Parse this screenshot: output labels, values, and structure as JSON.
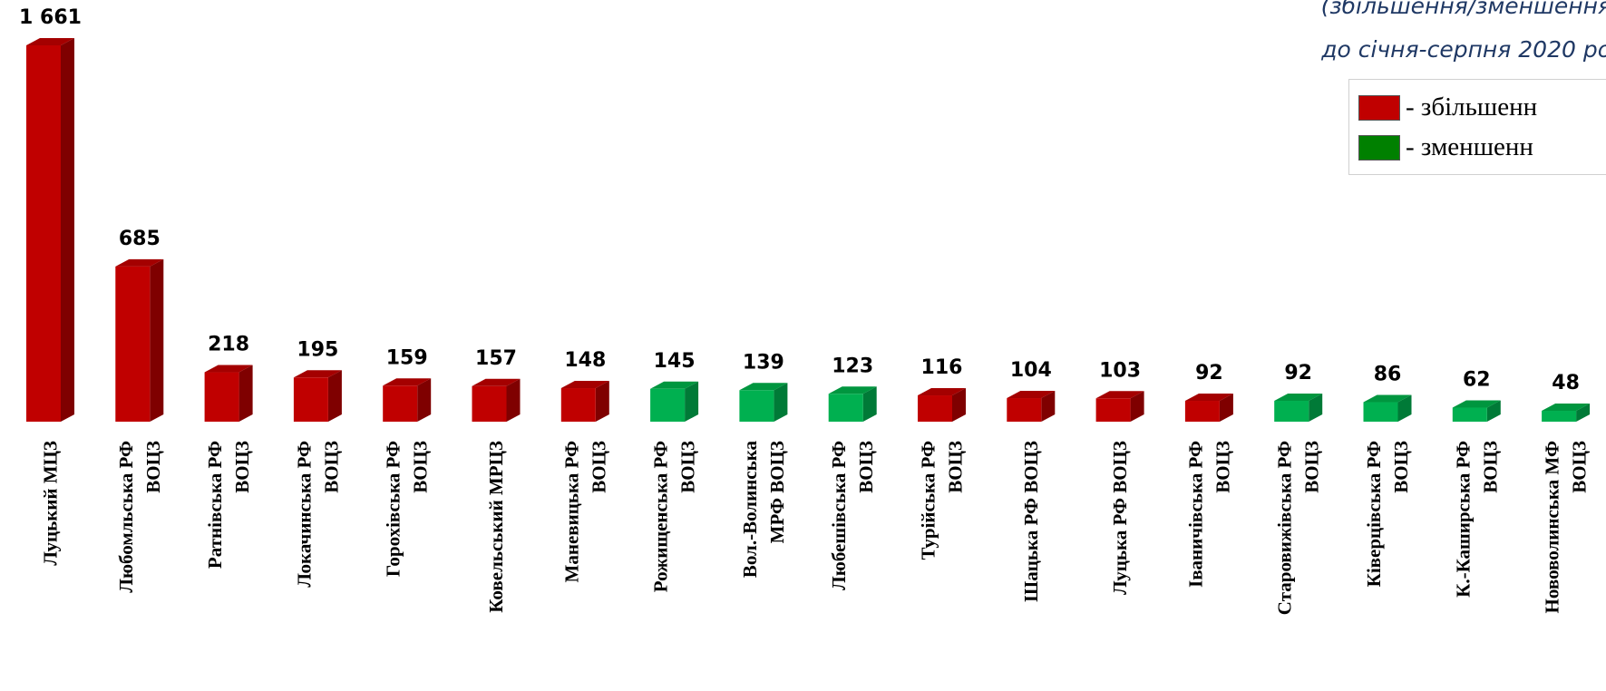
{
  "subtitle": {
    "line1": "(збільшення/зменшення",
    "line2": "до січня-серпня 2020 ро"
  },
  "legend": {
    "increase": {
      "label": "- збільшенн",
      "color": "#c00000"
    },
    "decrease": {
      "label": "- зменшенн",
      "color": "#008000"
    }
  },
  "chart_data": {
    "type": "bar",
    "categories": [
      [
        "Луцький МЦЗ"
      ],
      [
        "Любомльська РФ",
        "ВОЦЗ"
      ],
      [
        "Ратнівська РФ",
        "ВОЦЗ"
      ],
      [
        "Локачинська РФ",
        "ВОЦЗ"
      ],
      [
        "Горохівська РФ",
        "ВОЦЗ"
      ],
      [
        "Ковельський МРЦЗ"
      ],
      [
        "Маневицька РФ",
        "ВОЦЗ"
      ],
      [
        "Рожищенська РФ",
        "ВОЦЗ"
      ],
      [
        "Вол.-Волинська",
        "МРФ ВОЦЗ"
      ],
      [
        "Любешівська РФ",
        "ВОЦЗ"
      ],
      [
        "Турійська РФ",
        "ВОЦЗ"
      ],
      [
        "Шацька РФ ВОЦЗ"
      ],
      [
        "Луцька РФ ВОЦЗ"
      ],
      [
        "Іваничівська РФ",
        "ВОЦЗ"
      ],
      [
        "Старовижівська РФ",
        "ВОЦЗ"
      ],
      [
        "Ківерцівська РФ",
        "ВОЦЗ"
      ],
      [
        "К.-Каширська РФ",
        "ВОЦЗ"
      ],
      [
        "Нововолинська МФ",
        "ВОЦЗ"
      ]
    ],
    "values": [
      1661,
      685,
      218,
      195,
      159,
      157,
      148,
      145,
      139,
      123,
      116,
      104,
      103,
      92,
      92,
      86,
      62,
      48
    ],
    "value_labels": [
      "1 661",
      "685",
      "218",
      "195",
      "159",
      "157",
      "148",
      "145",
      "139",
      "123",
      "116",
      "104",
      "103",
      "92",
      "92",
      "86",
      "62",
      "48"
    ],
    "direction": [
      "increase",
      "increase",
      "increase",
      "increase",
      "increase",
      "increase",
      "increase",
      "decrease",
      "decrease",
      "decrease",
      "increase",
      "increase",
      "increase",
      "increase",
      "decrease",
      "decrease",
      "decrease",
      "decrease"
    ],
    "colors": {
      "increase": {
        "front": "#c00000",
        "side": "#7f0000",
        "top": "#a40000"
      },
      "decrease": {
        "front": "#00b050",
        "side": "#007a37",
        "top": "#00963f"
      }
    },
    "style": "3d-bar",
    "xlabel": "",
    "ylabel": "",
    "ylim": [
      0,
      1661
    ],
    "grid": false,
    "legend": "top-right"
  }
}
